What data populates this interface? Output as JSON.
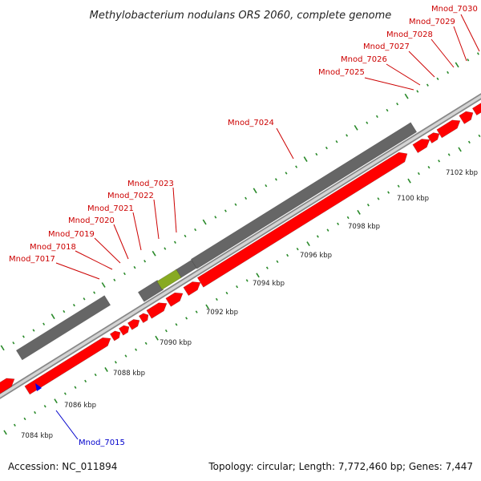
{
  "title": "Methylobacterium nodulans ORS 2060, complete genome",
  "footer": {
    "accession": "Accession: NC_011894",
    "topology": "Topology: circular; Length: 7,772,460 bp; Genes: 7,447"
  },
  "colors": {
    "gene_forward": "#ff0000",
    "gene_pseudo": "#666666",
    "gene_rna": "#88aa22",
    "gene_reverse": "#0000ee",
    "label_forward": "#cc0000",
    "label_reverse": "#0000cc",
    "tick": "#2a8a2a",
    "backbone": "#aaaaaa"
  },
  "kbp_ticks": [
    "7084 kbp",
    "7086 kbp",
    "7088 kbp",
    "7090 kbp",
    "7092 kbp",
    "7094 kbp",
    "7096 kbp",
    "7098 kbp",
    "7100 kbp",
    "7102 kbp"
  ],
  "gene_labels": [
    {
      "text": "Mnod_7015",
      "strand": "reverse"
    },
    {
      "text": "Mnod_7017",
      "strand": "forward"
    },
    {
      "text": "Mnod_7018",
      "strand": "forward"
    },
    {
      "text": "Mnod_7019",
      "strand": "forward"
    },
    {
      "text": "Mnod_7020",
      "strand": "forward"
    },
    {
      "text": "Mnod_7021",
      "strand": "forward"
    },
    {
      "text": "Mnod_7022",
      "strand": "forward"
    },
    {
      "text": "Mnod_7023",
      "strand": "forward"
    },
    {
      "text": "Mnod_7024",
      "strand": "forward"
    },
    {
      "text": "Mnod_7025",
      "strand": "forward"
    },
    {
      "text": "Mnod_7026",
      "strand": "forward"
    },
    {
      "text": "Mnod_7027",
      "strand": "forward"
    },
    {
      "text": "Mnod_7028",
      "strand": "forward"
    },
    {
      "text": "Mnod_7029",
      "strand": "forward"
    },
    {
      "text": "Mnod_7030",
      "strand": "forward"
    }
  ]
}
